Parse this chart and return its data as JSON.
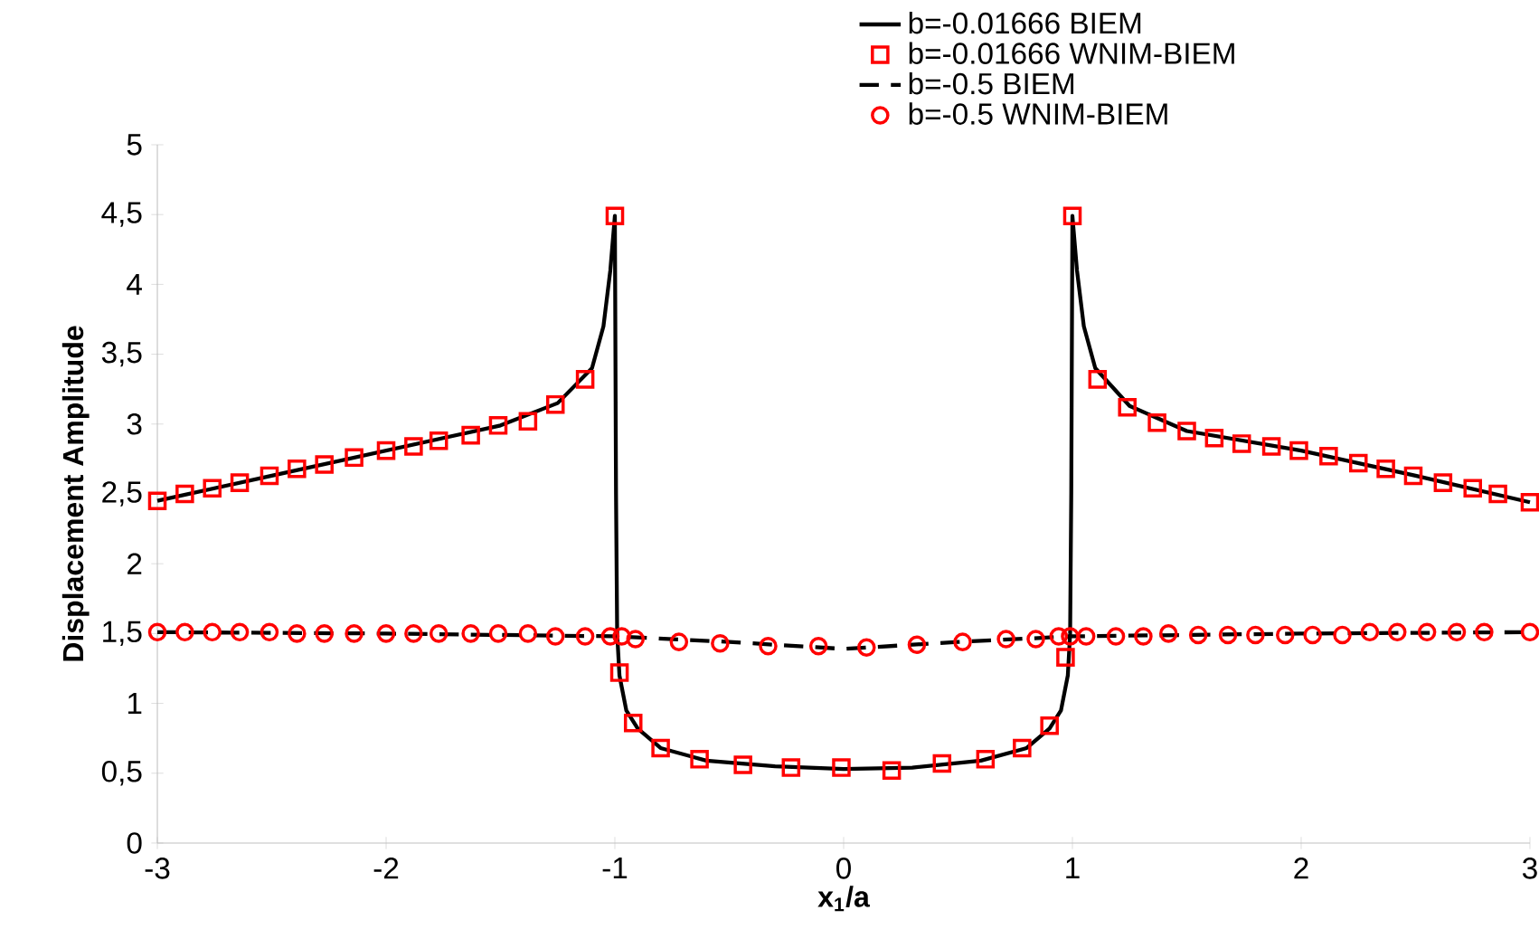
{
  "chart_data": {
    "type": "line",
    "xlabel": "x$_{1}$/a",
    "ylabel": "Displacement Amplitude",
    "xlim": [
      -3,
      3
    ],
    "ylim": [
      0,
      5
    ],
    "xticks": [
      -3,
      -2,
      -1,
      0,
      1,
      2,
      3
    ],
    "yticks": [
      0,
      {
        "value": 0.5,
        "label": "0,5"
      },
      1,
      {
        "value": 1.5,
        "label": "1,5"
      },
      2,
      {
        "value": 2.5,
        "label": "2,5"
      },
      3,
      {
        "value": 3.5,
        "label": "3,5"
      },
      4,
      {
        "value": 4.5,
        "label": "4,5"
      },
      5
    ],
    "grid": false,
    "legend": "top",
    "series": [
      {
        "name": "b=-0.01666 BIEM",
        "color": "#000000",
        "line_style": "solid",
        "marker": "none",
        "x": [
          -3,
          -2.5,
          -2,
          -1.5,
          -1.25,
          -1.1,
          -1.05,
          -1.02,
          -1.0,
          -0.995,
          -0.99,
          -0.98,
          -0.95,
          -0.9,
          -0.8,
          -0.6,
          -0.3,
          0,
          0.3,
          0.6,
          0.8,
          0.9,
          0.95,
          0.98,
          0.99,
          0.995,
          1.0,
          1.02,
          1.05,
          1.1,
          1.25,
          1.5,
          2,
          2.5,
          3
        ],
        "values": [
          2.45,
          2.63,
          2.81,
          2.99,
          3.15,
          3.4,
          3.7,
          4.1,
          4.49,
          2.5,
          1.5,
          1.2,
          0.95,
          0.82,
          0.68,
          0.59,
          0.55,
          0.53,
          0.54,
          0.59,
          0.68,
          0.82,
          0.95,
          1.2,
          1.5,
          2.5,
          4.49,
          4.1,
          3.7,
          3.4,
          3.13,
          2.95,
          2.81,
          2.63,
          2.44
        ]
      },
      {
        "name": "b=-0.01666 WNIM-BIEM",
        "type": "scatter",
        "color": "#ff0000",
        "marker": "square",
        "x": [
          -3.0,
          -2.88,
          -2.76,
          -2.64,
          -2.51,
          -2.39,
          -2.27,
          -2.14,
          -2.0,
          -1.88,
          -1.77,
          -1.63,
          -1.51,
          -1.38,
          -1.26,
          -1.13,
          -1.0,
          -0.98,
          -0.92,
          -0.8,
          -0.63,
          -0.44,
          -0.23,
          -0.01,
          0.21,
          0.43,
          0.62,
          0.78,
          0.9,
          0.97,
          1.0,
          1.11,
          1.24,
          1.37,
          1.5,
          1.62,
          1.74,
          1.87,
          1.99,
          2.12,
          2.25,
          2.37,
          2.49,
          2.62,
          2.75,
          2.86,
          3.0
        ],
        "values": [
          2.45,
          2.5,
          2.54,
          2.58,
          2.63,
          2.68,
          2.71,
          2.76,
          2.81,
          2.84,
          2.88,
          2.92,
          2.99,
          3.02,
          3.14,
          3.32,
          4.49,
          1.22,
          0.86,
          0.68,
          0.6,
          0.56,
          0.54,
          0.54,
          0.52,
          0.57,
          0.6,
          0.68,
          0.84,
          1.33,
          4.49,
          3.32,
          3.12,
          3.01,
          2.95,
          2.9,
          2.86,
          2.84,
          2.81,
          2.77,
          2.72,
          2.68,
          2.63,
          2.58,
          2.54,
          2.5,
          2.44
        ]
      },
      {
        "name": "b=-0.5 BIEM",
        "color": "#000000",
        "line_style": "dashed",
        "marker": "none",
        "x": [
          -3,
          -2,
          -1.5,
          -1,
          -0.5,
          0,
          0.5,
          1,
          1.5,
          2,
          3
        ],
        "values": [
          1.51,
          1.5,
          1.49,
          1.48,
          1.44,
          1.39,
          1.44,
          1.48,
          1.49,
          1.5,
          1.51
        ]
      },
      {
        "name": "b=-0.5 WNIM-BIEM",
        "type": "scatter",
        "color": "#ff0000",
        "marker": "circle",
        "x": [
          -3.0,
          -2.88,
          -2.76,
          -2.64,
          -2.51,
          -2.39,
          -2.27,
          -2.14,
          -2.0,
          -1.88,
          -1.77,
          -1.63,
          -1.51,
          -1.38,
          -1.26,
          -1.13,
          -1.02,
          -0.97,
          -0.91,
          -0.72,
          -0.54,
          -0.33,
          -0.11,
          0.1,
          0.32,
          0.52,
          0.71,
          0.84,
          0.94,
          0.99,
          1.06,
          1.19,
          1.31,
          1.42,
          1.55,
          1.68,
          1.8,
          1.93,
          2.05,
          2.18,
          2.3,
          2.42,
          2.55,
          2.68,
          2.8,
          3.0
        ],
        "values": [
          1.51,
          1.51,
          1.51,
          1.51,
          1.51,
          1.5,
          1.5,
          1.5,
          1.5,
          1.5,
          1.5,
          1.5,
          1.5,
          1.5,
          1.48,
          1.48,
          1.48,
          1.48,
          1.46,
          1.44,
          1.43,
          1.41,
          1.41,
          1.4,
          1.42,
          1.44,
          1.46,
          1.46,
          1.48,
          1.48,
          1.48,
          1.48,
          1.48,
          1.5,
          1.49,
          1.49,
          1.49,
          1.49,
          1.49,
          1.49,
          1.51,
          1.51,
          1.51,
          1.51,
          1.51,
          1.51
        ]
      }
    ]
  }
}
